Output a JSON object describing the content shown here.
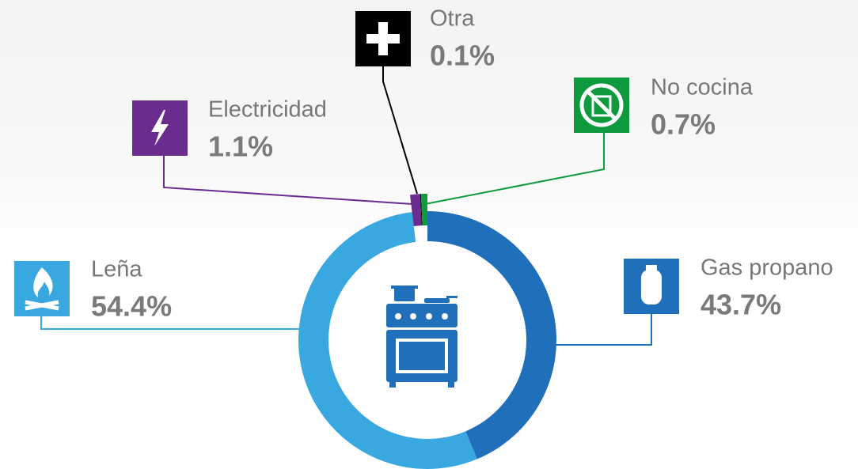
{
  "chart_data": {
    "type": "donut",
    "categories": [
      "Gas propano",
      "Leña",
      "Electricidad",
      "Otra",
      "No cocina"
    ],
    "values": [
      43.7,
      54.4,
      1.1,
      0.1,
      0.7
    ],
    "value_labels": [
      "43.7%",
      "54.4%",
      "1.1%",
      "0.1%",
      "0.7%"
    ],
    "colors": [
      "#1f6fba",
      "#3aa8e0",
      "#6a2c8e",
      "#000000",
      "#0f9a3e"
    ]
  }
}
